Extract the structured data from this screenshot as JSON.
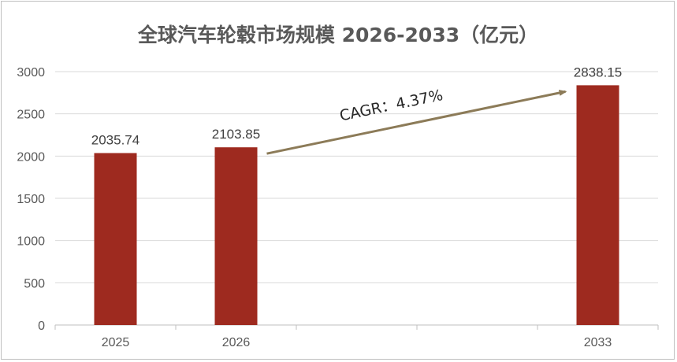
{
  "chart_data": {
    "type": "bar",
    "title": "全球汽车轮毂市场规模 2026-2033（亿元）",
    "categories": [
      "2025",
      "2026",
      "",
      "",
      "2033"
    ],
    "values": [
      2035.74,
      2103.85,
      null,
      null,
      2838.15
    ],
    "value_labels": [
      "2035.74",
      "2103.85",
      "",
      "",
      "2838.15"
    ],
    "ylim": [
      0,
      3000
    ],
    "yticks": [
      0,
      500,
      1000,
      1500,
      2000,
      2500,
      3000
    ],
    "grid": true,
    "bar_color": "#9e2a1f",
    "annotation": {
      "text": "CAGR：4.37%",
      "from_category": "2026",
      "to_category": "2033",
      "arrow_color": "#8c7b58"
    }
  }
}
